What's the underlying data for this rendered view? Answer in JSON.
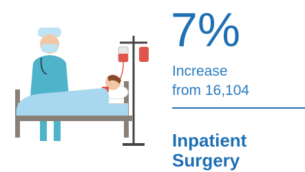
{
  "stat": "7%",
  "description": [
    "Increase",
    "from 16,104"
  ],
  "title": [
    "Inpatient",
    "Surgery"
  ]
}
